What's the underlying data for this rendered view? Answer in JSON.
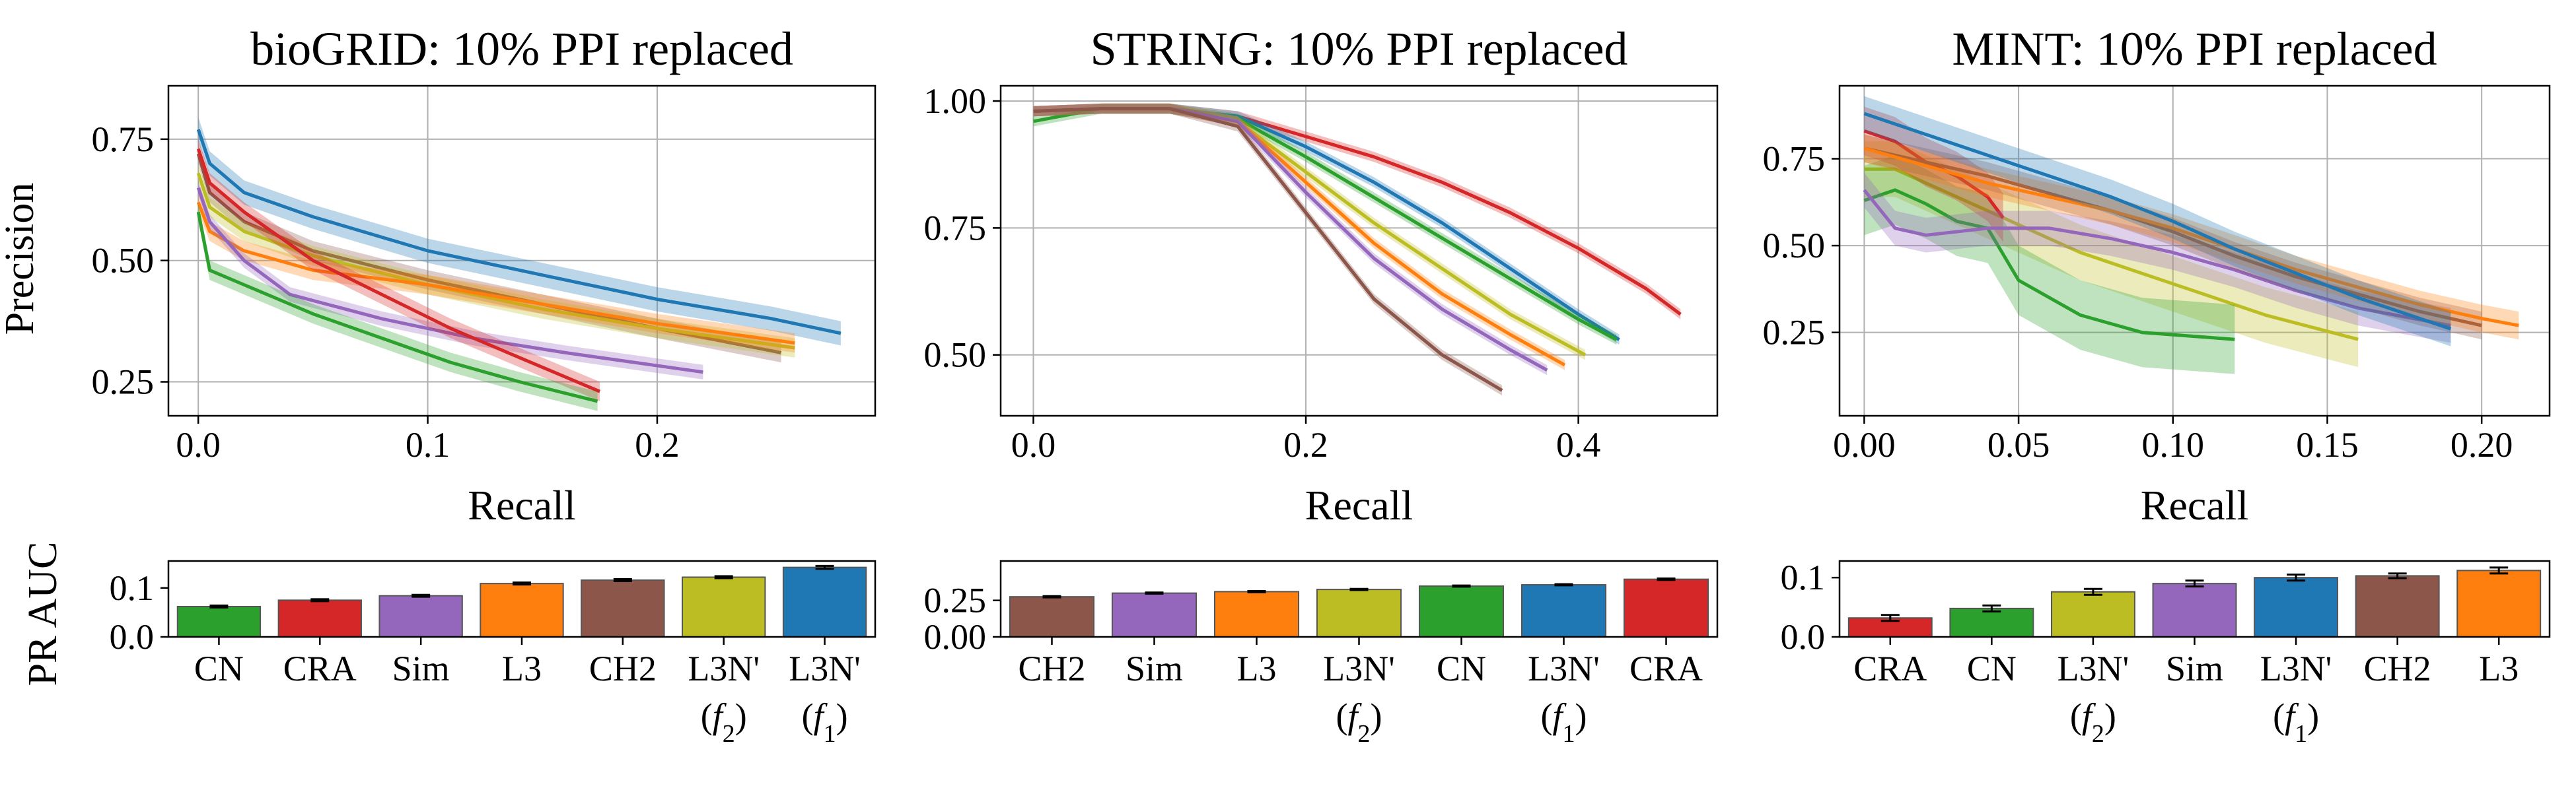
{
  "figure": {
    "ylabel_pr": "Precision",
    "ylabel_auc": "PR AUC",
    "xlabel": "Recall"
  },
  "colors": {
    "CN": "#2ca02c",
    "CRA": "#d62728",
    "Sim": "#9467bd",
    "L3": "#ff7f0e",
    "CH2": "#8c564b",
    "L3N' (f2)": "#bcbd22",
    "L3N' (f1)": "#1f77b4"
  },
  "chart_data": [
    {
      "type": "line",
      "title": "bioGRID: 10% PPI replaced",
      "xlabel": "Recall",
      "ylabel": "Precision",
      "xlim": [
        -0.013,
        0.295
      ],
      "ylim": [
        0.18,
        0.86
      ],
      "xticks": [
        0.0,
        0.1,
        0.2
      ],
      "xtick_labels": [
        "0.0",
        "0.1",
        "0.2"
      ],
      "yticks": [
        0.25,
        0.5,
        0.75
      ],
      "ytick_labels": [
        "0.25",
        "0.50",
        "0.75"
      ],
      "grid": true,
      "series": [
        {
          "method": "L3N' (f1)",
          "x": [
            0.0,
            0.005,
            0.02,
            0.05,
            0.1,
            0.15,
            0.2,
            0.25,
            0.28
          ],
          "y": [
            0.77,
            0.7,
            0.64,
            0.59,
            0.52,
            0.47,
            0.42,
            0.38,
            0.35
          ],
          "band": 0.025
        },
        {
          "method": "CH2",
          "x": [
            0.0,
            0.005,
            0.02,
            0.05,
            0.1,
            0.15,
            0.2,
            0.254
          ],
          "y": [
            0.72,
            0.64,
            0.58,
            0.52,
            0.46,
            0.41,
            0.36,
            0.31
          ],
          "band": 0.02
        },
        {
          "method": "L3N' (f2)",
          "x": [
            0.0,
            0.005,
            0.02,
            0.05,
            0.1,
            0.15,
            0.2,
            0.26
          ],
          "y": [
            0.68,
            0.61,
            0.56,
            0.51,
            0.45,
            0.4,
            0.36,
            0.32
          ],
          "band": 0.02
        },
        {
          "method": "L3",
          "x": [
            0.0,
            0.005,
            0.02,
            0.05,
            0.1,
            0.15,
            0.2,
            0.26
          ],
          "y": [
            0.62,
            0.56,
            0.52,
            0.48,
            0.45,
            0.41,
            0.37,
            0.33
          ],
          "band": 0.02
        },
        {
          "method": "Sim",
          "x": [
            0.0,
            0.005,
            0.02,
            0.04,
            0.08,
            0.12,
            0.16,
            0.22
          ],
          "y": [
            0.65,
            0.58,
            0.5,
            0.43,
            0.38,
            0.34,
            0.31,
            0.27
          ],
          "band": 0.015
        },
        {
          "method": "CRA",
          "x": [
            0.0,
            0.005,
            0.02,
            0.05,
            0.08,
            0.11,
            0.14,
            0.175
          ],
          "y": [
            0.73,
            0.66,
            0.6,
            0.5,
            0.43,
            0.36,
            0.3,
            0.23
          ],
          "band": 0.02
        },
        {
          "method": "CN",
          "x": [
            0.0,
            0.005,
            0.02,
            0.05,
            0.08,
            0.11,
            0.14,
            0.174
          ],
          "y": [
            0.6,
            0.48,
            0.45,
            0.39,
            0.34,
            0.29,
            0.25,
            0.21
          ],
          "band": 0.02
        }
      ]
    },
    {
      "type": "line",
      "title": "STRING: 10% PPI replaced",
      "xlabel": "Recall",
      "ylabel": "",
      "xlim": [
        -0.024,
        0.502
      ],
      "ylim": [
        0.38,
        1.03
      ],
      "xticks": [
        0.0,
        0.2,
        0.4
      ],
      "xtick_labels": [
        "0.0",
        "0.2",
        "0.4"
      ],
      "yticks": [
        0.5,
        0.75,
        1.0
      ],
      "ytick_labels": [
        "0.50",
        "0.75",
        "1.00"
      ],
      "grid": true,
      "series": [
        {
          "method": "CRA",
          "x": [
            0.0,
            0.05,
            0.1,
            0.15,
            0.2,
            0.25,
            0.3,
            0.35,
            0.4,
            0.45,
            0.475
          ],
          "y": [
            0.98,
            0.985,
            0.985,
            0.97,
            0.93,
            0.89,
            0.84,
            0.78,
            0.71,
            0.63,
            0.58
          ],
          "band": 0.01
        },
        {
          "method": "L3N' (f1)",
          "x": [
            0.0,
            0.05,
            0.1,
            0.15,
            0.2,
            0.25,
            0.3,
            0.35,
            0.4,
            0.43
          ],
          "y": [
            0.98,
            0.985,
            0.985,
            0.97,
            0.91,
            0.84,
            0.76,
            0.67,
            0.58,
            0.53
          ],
          "band": 0.01
        },
        {
          "method": "CN",
          "x": [
            0.0,
            0.05,
            0.1,
            0.15,
            0.2,
            0.25,
            0.3,
            0.35,
            0.4,
            0.428
          ],
          "y": [
            0.96,
            0.985,
            0.985,
            0.965,
            0.89,
            0.81,
            0.73,
            0.65,
            0.57,
            0.53
          ],
          "band": 0.01
        },
        {
          "method": "L3N' (f2)",
          "x": [
            0.0,
            0.05,
            0.1,
            0.15,
            0.2,
            0.25,
            0.3,
            0.35,
            0.405
          ],
          "y": [
            0.98,
            0.985,
            0.985,
            0.96,
            0.86,
            0.76,
            0.67,
            0.58,
            0.5
          ],
          "band": 0.01
        },
        {
          "method": "L3",
          "x": [
            0.0,
            0.05,
            0.1,
            0.15,
            0.2,
            0.25,
            0.3,
            0.35,
            0.39
          ],
          "y": [
            0.98,
            0.985,
            0.985,
            0.96,
            0.84,
            0.72,
            0.62,
            0.54,
            0.48
          ],
          "band": 0.01
        },
        {
          "method": "Sim",
          "x": [
            0.0,
            0.05,
            0.1,
            0.15,
            0.2,
            0.25,
            0.3,
            0.35,
            0.377
          ],
          "y": [
            0.98,
            0.985,
            0.985,
            0.96,
            0.82,
            0.69,
            0.59,
            0.51,
            0.47
          ],
          "band": 0.01
        },
        {
          "method": "CH2",
          "x": [
            0.0,
            0.05,
            0.1,
            0.15,
            0.2,
            0.25,
            0.3,
            0.344
          ],
          "y": [
            0.98,
            0.985,
            0.985,
            0.95,
            0.78,
            0.61,
            0.5,
            0.43
          ],
          "band": 0.01
        }
      ]
    },
    {
      "type": "line",
      "title": "MINT: 10% PPI replaced",
      "xlabel": "Recall",
      "ylabel": "",
      "xlim": [
        -0.008,
        0.222
      ],
      "ylim": [
        0.01,
        0.96
      ],
      "xticks": [
        0.0,
        0.05,
        0.1,
        0.15,
        0.2
      ],
      "xtick_labels": [
        "0.00",
        "0.05",
        "0.10",
        "0.15",
        "0.20"
      ],
      "yticks": [
        0.25,
        0.5,
        0.75
      ],
      "ytick_labels": [
        "0.25",
        "0.50",
        "0.75"
      ],
      "grid": true,
      "series": [
        {
          "method": "L3N' (f2)",
          "x": [
            0.0,
            0.01,
            0.03,
            0.05,
            0.07,
            0.09,
            0.11,
            0.13,
            0.16
          ],
          "y": [
            0.72,
            0.72,
            0.64,
            0.56,
            0.48,
            0.42,
            0.36,
            0.3,
            0.23
          ],
          "band": 0.08
        },
        {
          "method": "CN",
          "x": [
            0.0,
            0.01,
            0.02,
            0.03,
            0.04,
            0.05,
            0.07,
            0.09,
            0.12
          ],
          "y": [
            0.63,
            0.66,
            0.62,
            0.57,
            0.55,
            0.4,
            0.3,
            0.25,
            0.23
          ],
          "band": 0.1
        },
        {
          "method": "CRA",
          "x": [
            0.0,
            0.01,
            0.02,
            0.03,
            0.04,
            0.045
          ],
          "y": [
            0.83,
            0.8,
            0.74,
            0.7,
            0.64,
            0.58
          ],
          "band": 0.07
        },
        {
          "method": "Sim",
          "x": [
            0.0,
            0.01,
            0.02,
            0.04,
            0.06,
            0.08,
            0.1,
            0.12,
            0.14,
            0.16,
            0.19
          ],
          "y": [
            0.66,
            0.55,
            0.53,
            0.55,
            0.55,
            0.52,
            0.48,
            0.43,
            0.37,
            0.32,
            0.27
          ],
          "band": 0.05
        },
        {
          "method": "CH2",
          "x": [
            0.0,
            0.02,
            0.04,
            0.06,
            0.08,
            0.1,
            0.12,
            0.14,
            0.16,
            0.18,
            0.2
          ],
          "y": [
            0.78,
            0.74,
            0.7,
            0.65,
            0.6,
            0.54,
            0.47,
            0.41,
            0.36,
            0.31,
            0.27
          ],
          "band": 0.04
        },
        {
          "method": "L3",
          "x": [
            0.0,
            0.02,
            0.04,
            0.06,
            0.08,
            0.1,
            0.12,
            0.14,
            0.16,
            0.18,
            0.2,
            0.212
          ],
          "y": [
            0.78,
            0.73,
            0.68,
            0.64,
            0.6,
            0.55,
            0.49,
            0.43,
            0.38,
            0.33,
            0.29,
            0.27
          ],
          "band": 0.04
        },
        {
          "method": "L3N' (f1)",
          "x": [
            0.0,
            0.02,
            0.04,
            0.06,
            0.08,
            0.1,
            0.12,
            0.14,
            0.16,
            0.18,
            0.19
          ],
          "y": [
            0.88,
            0.82,
            0.76,
            0.7,
            0.64,
            0.57,
            0.49,
            0.42,
            0.35,
            0.29,
            0.26
          ],
          "band": 0.05
        }
      ]
    },
    {
      "type": "bar",
      "ylabel": "PR AUC",
      "ylim": [
        0.0,
        0.155
      ],
      "yticks": [
        0.0,
        0.1
      ],
      "ytick_labels": [
        "0.0",
        "0.1"
      ],
      "categories": [
        [
          "CN"
        ],
        [
          "CRA"
        ],
        [
          "Sim"
        ],
        [
          "L3"
        ],
        [
          "CH2"
        ],
        [
          "L3N'",
          "(f2)"
        ],
        [
          "L3N'",
          "(f1)"
        ]
      ],
      "methods": [
        "CN",
        "CRA",
        "Sim",
        "L3",
        "CH2",
        "L3N' (f2)",
        "L3N' (f1)"
      ],
      "values": [
        0.062,
        0.075,
        0.084,
        0.109,
        0.116,
        0.122,
        0.142
      ],
      "errors": [
        0.002,
        0.002,
        0.002,
        0.002,
        0.002,
        0.002,
        0.003
      ]
    },
    {
      "type": "bar",
      "ylabel": "",
      "ylim": [
        0.0,
        0.52
      ],
      "yticks": [
        0.0,
        0.25
      ],
      "ytick_labels": [
        "0.00",
        "0.25"
      ],
      "categories": [
        [
          "CH2"
        ],
        [
          "Sim"
        ],
        [
          "L3"
        ],
        [
          "L3N'",
          "(f2)"
        ],
        [
          "CN"
        ],
        [
          "L3N'",
          "(f1)"
        ],
        [
          "CRA"
        ]
      ],
      "methods": [
        "CH2",
        "Sim",
        "L3",
        "L3N' (f2)",
        "CN",
        "L3N' (f1)",
        "CRA"
      ],
      "values": [
        0.275,
        0.3,
        0.31,
        0.325,
        0.348,
        0.357,
        0.395
      ],
      "errors": [
        0.004,
        0.004,
        0.004,
        0.004,
        0.004,
        0.004,
        0.005
      ]
    },
    {
      "type": "bar",
      "ylabel": "",
      "ylim": [
        0.0,
        0.128
      ],
      "yticks": [
        0.0,
        0.1
      ],
      "ytick_labels": [
        "0.0",
        "0.1"
      ],
      "categories": [
        [
          "CRA"
        ],
        [
          "CN"
        ],
        [
          "L3N'",
          "(f2)"
        ],
        [
          "Sim"
        ],
        [
          "L3N'",
          "(f1)"
        ],
        [
          "CH2"
        ],
        [
          "L3"
        ]
      ],
      "methods": [
        "CRA",
        "CN",
        "L3N' (f2)",
        "Sim",
        "L3N' (f1)",
        "CH2",
        "L3"
      ],
      "values": [
        0.032,
        0.048,
        0.076,
        0.09,
        0.1,
        0.103,
        0.112
      ],
      "errors": [
        0.005,
        0.005,
        0.005,
        0.005,
        0.005,
        0.004,
        0.005
      ]
    }
  ]
}
